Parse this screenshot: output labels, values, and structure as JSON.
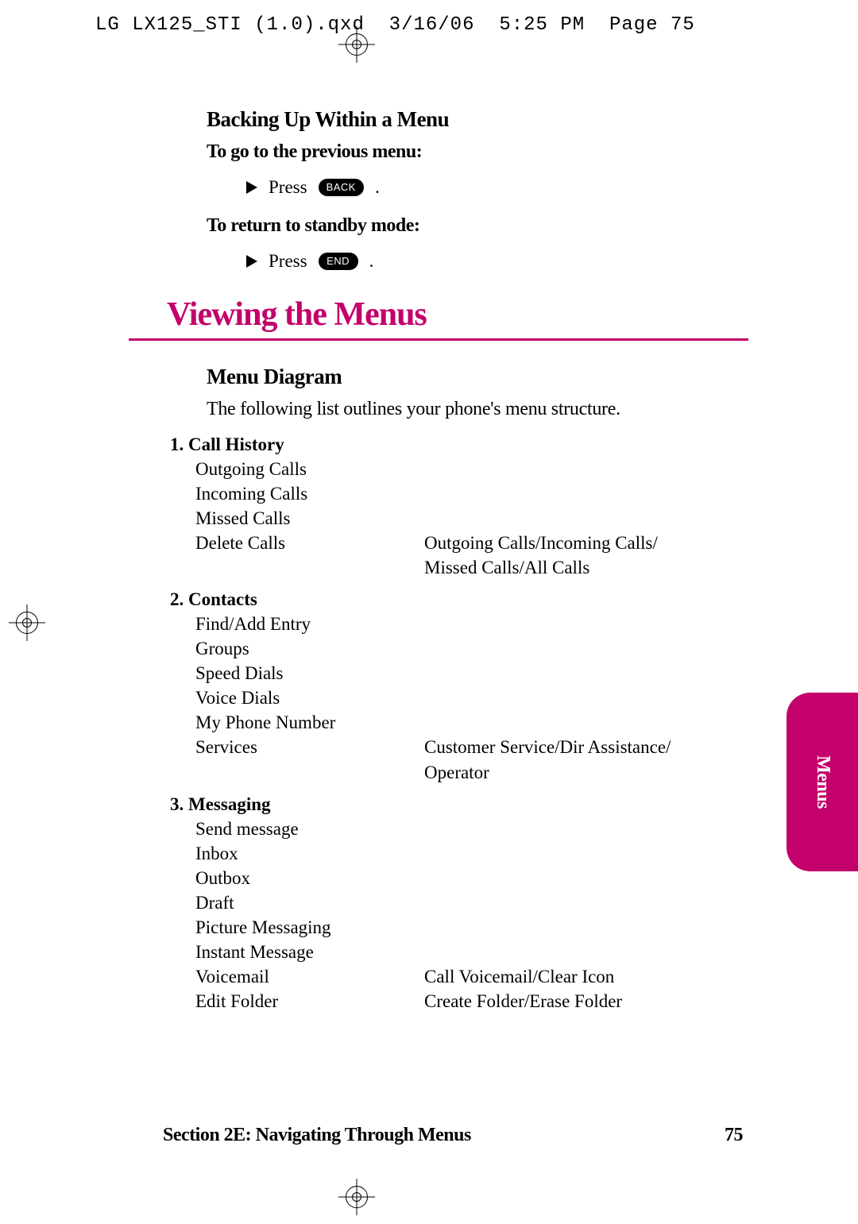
{
  "meta": {
    "filename": "LG LX125_STI (1.0).qxd",
    "date": "3/16/06",
    "time": "5:25 PM",
    "page_label": "Page 75"
  },
  "colors": {
    "accent": "#c3006b",
    "text": "#000000",
    "bg": "#ffffff"
  },
  "backing_up": {
    "heading": "Backing Up Within a Menu",
    "previous_label": "To go to the previous menu:",
    "previous_action_prefix": "Press",
    "previous_key": "BACK",
    "standby_label": "To return to standby mode:",
    "standby_action_prefix": "Press",
    "standby_key": "END"
  },
  "viewing": {
    "heading": "Viewing the Menus",
    "sub_heading": "Menu Diagram",
    "intro": "The following list outlines your phone's menu structure."
  },
  "menu": {
    "sections": [
      {
        "title": "1. Call History",
        "items": [
          {
            "left": "Outgoing Calls",
            "right": ""
          },
          {
            "left": "Incoming Calls",
            "right": ""
          },
          {
            "left": "Missed Calls",
            "right": ""
          },
          {
            "left": "Delete Calls",
            "right": "Outgoing Calls/Incoming Calls/"
          },
          {
            "left": "",
            "right": "Missed Calls/All Calls"
          }
        ]
      },
      {
        "title": "2. Contacts",
        "items": [
          {
            "left": "Find/Add Entry",
            "right": ""
          },
          {
            "left": "Groups",
            "right": ""
          },
          {
            "left": "Speed Dials",
            "right": ""
          },
          {
            "left": "Voice Dials",
            "right": ""
          },
          {
            "left": "My Phone Number",
            "right": ""
          },
          {
            "left": "Services",
            "right": "Customer Service/Dir Assistance/"
          },
          {
            "left": "",
            "right": "Operator"
          }
        ]
      },
      {
        "title": "3. Messaging",
        "items": [
          {
            "left": "Send message",
            "right": ""
          },
          {
            "left": "Inbox",
            "right": ""
          },
          {
            "left": "Outbox",
            "right": ""
          },
          {
            "left": "Draft",
            "right": ""
          },
          {
            "left": "Picture Messaging",
            "right": ""
          },
          {
            "left": "Instant Message",
            "right": ""
          },
          {
            "left": "Voicemail",
            "right": "Call Voicemail/Clear Icon"
          },
          {
            "left": "Edit Folder",
            "right": "Create Folder/Erase Folder"
          }
        ]
      }
    ]
  },
  "side_tab": "Menus",
  "footer": {
    "section": "Section 2E: Navigating Through Menus",
    "page": "75"
  }
}
